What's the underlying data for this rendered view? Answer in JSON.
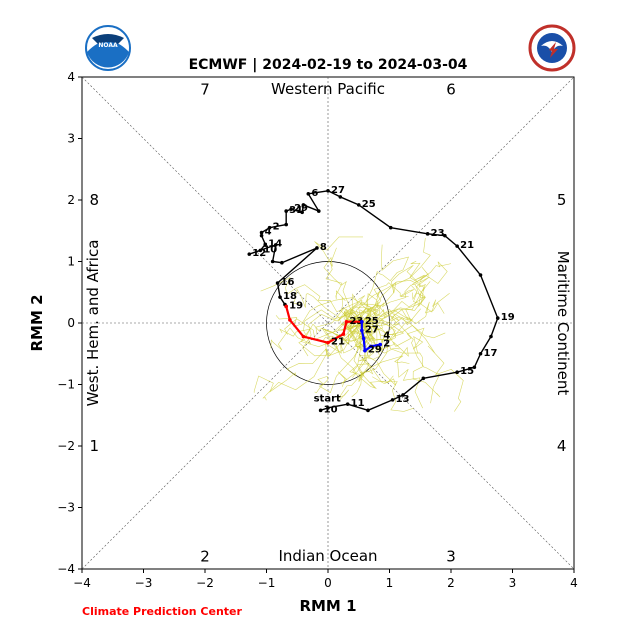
{
  "chart_data": {
    "type": "line",
    "title": "ECMWF | 2024-02-19 to 2024-03-04",
    "xlabel": "RMM 1",
    "ylabel": "RMM 2",
    "xlim": [
      -4,
      4
    ],
    "ylim": [
      -4,
      4
    ],
    "xticks": [
      "−4",
      "−3",
      "−2",
      "−1",
      "0",
      "1",
      "2",
      "3",
      "4"
    ],
    "yticks": [
      "−4",
      "−3",
      "−2",
      "−1",
      "0",
      "1",
      "2",
      "3",
      "4"
    ],
    "reference_circle_radius": 1,
    "region_labels": {
      "top": "Western Pacific",
      "bottom": "Indian Ocean",
      "left": "West. Hem. and Africa",
      "right": "Maritime Continent"
    },
    "phase_numbers": [
      "1",
      "2",
      "3",
      "4",
      "5",
      "6",
      "7",
      "8"
    ],
    "credit": "Climate Prediction Center",
    "colors": {
      "observed": "#000000",
      "forecast_week1": "#ff0000",
      "forecast_week2": "#0000ff",
      "ensemble": "#cccc33",
      "credit": "#ff0000",
      "noaa_logo": "#1a6fc4",
      "nws_logo": "#c0302a"
    },
    "series": [
      {
        "points": [
          [
            -0.12,
            -1.42
          ],
          [
            0.0,
            -1.38
          ],
          [
            0.32,
            -1.32
          ],
          [
            0.65,
            -1.42
          ],
          [
            1.05,
            -1.25
          ],
          [
            1.22,
            -1.17
          ],
          [
            1.55,
            -0.9
          ],
          [
            2.1,
            -0.8
          ],
          [
            2.38,
            -0.72
          ],
          [
            2.48,
            -0.5
          ],
          [
            2.65,
            -0.22
          ],
          [
            2.76,
            0.08
          ],
          [
            2.48,
            0.78
          ],
          [
            2.1,
            1.25
          ],
          [
            1.9,
            1.42
          ],
          [
            1.62,
            1.45
          ],
          [
            1.02,
            1.55
          ],
          [
            0.5,
            1.92
          ],
          [
            0.2,
            2.05
          ],
          [
            0.0,
            2.15
          ],
          [
            -0.32,
            2.1
          ],
          [
            -0.15,
            1.82
          ],
          [
            -0.4,
            1.92
          ],
          [
            -0.42,
            1.8
          ],
          [
            -0.6,
            1.85
          ],
          [
            -0.68,
            1.82
          ],
          [
            -0.68,
            1.6
          ],
          [
            -0.95,
            1.55
          ],
          [
            -1.08,
            1.47
          ],
          [
            -1.08,
            1.42
          ],
          [
            -1.02,
            1.28
          ],
          [
            -1.1,
            1.18
          ],
          [
            -1.28,
            1.12
          ],
          [
            -0.85,
            1.27
          ],
          [
            -0.9,
            1.0
          ],
          [
            -0.75,
            0.98
          ],
          [
            -0.18,
            1.22
          ],
          [
            -0.82,
            0.65
          ],
          [
            -0.78,
            0.42
          ],
          [
            -0.7,
            0.3
          ],
          [
            -0.68,
            0.27
          ]
        ],
        "labels": [
          {
            "text": "start",
            "x": -0.12,
            "y": -1.42
          },
          {
            "text": "10",
            "x": -0.12,
            "y": -1.42
          },
          {
            "text": "11",
            "x": 0.32,
            "y": -1.32
          },
          {
            "text": "13",
            "x": 1.05,
            "y": -1.25
          },
          {
            "text": "15",
            "x": 2.1,
            "y": -0.8
          },
          {
            "text": "17",
            "x": 2.48,
            "y": -0.5
          },
          {
            "text": "19",
            "x": 2.76,
            "y": 0.08
          },
          {
            "text": "21",
            "x": 2.1,
            "y": 1.25
          },
          {
            "text": "23",
            "x": 1.62,
            "y": 1.45
          },
          {
            "text": "25",
            "x": 0.5,
            "y": 1.92
          },
          {
            "text": "27",
            "x": 0.0,
            "y": 2.15
          },
          {
            "text": "6",
            "x": -0.32,
            "y": 2.1
          },
          {
            "text": "29",
            "x": -0.6,
            "y": 1.85
          },
          {
            "text": "31",
            "x": -0.68,
            "y": 1.82
          },
          {
            "text": "4",
            "x": -1.08,
            "y": 1.47
          },
          {
            "text": "2",
            "x": -0.95,
            "y": 1.55
          },
          {
            "text": "14",
            "x": -1.02,
            "y": 1.28
          },
          {
            "text": "10",
            "x": -1.1,
            "y": 1.18
          },
          {
            "text": "12",
            "x": -1.28,
            "y": 1.12
          },
          {
            "text": "8",
            "x": -0.18,
            "y": 1.22
          },
          {
            "text": "16",
            "x": -0.82,
            "y": 0.65
          },
          {
            "text": "18",
            "x": -0.78,
            "y": 0.42
          },
          {
            "text": "19",
            "x": -0.68,
            "y": 0.27
          }
        ]
      },
      {
        "points": [
          [
            -0.68,
            0.27
          ],
          [
            -0.62,
            0.05
          ],
          [
            -0.4,
            -0.22
          ],
          [
            0.0,
            -0.32
          ],
          [
            0.25,
            -0.18
          ],
          [
            0.3,
            0.02
          ],
          [
            0.55,
            0.02
          ]
        ],
        "labels": [
          {
            "text": "21",
            "x": 0.0,
            "y": -0.32
          },
          {
            "text": "23",
            "x": 0.3,
            "y": 0.02
          }
        ]
      },
      {
        "points": [
          [
            0.55,
            0.02
          ],
          [
            0.55,
            -0.12
          ],
          [
            0.58,
            -0.25
          ],
          [
            0.6,
            -0.45
          ],
          [
            0.7,
            -0.38
          ],
          [
            0.85,
            -0.35
          ]
        ],
        "labels": [
          {
            "text": "25",
            "x": 0.55,
            "y": 0.02
          },
          {
            "text": "27",
            "x": 0.55,
            "y": -0.12
          },
          {
            "text": "29",
            "x": 0.6,
            "y": -0.45
          },
          {
            "text": "4",
            "x": 0.85,
            "y": -0.22
          },
          {
            "text": "2",
            "x": 0.85,
            "y": -0.35
          }
        ]
      }
    ]
  }
}
